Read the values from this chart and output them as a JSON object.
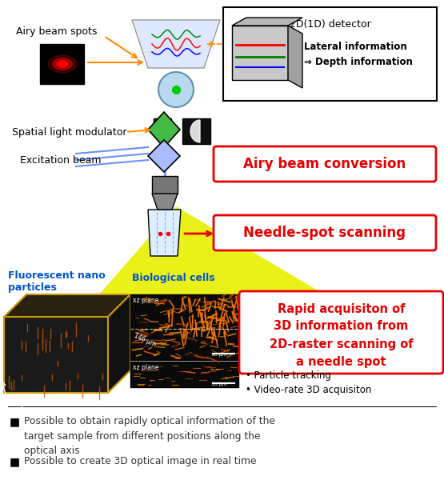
{
  "bg_color": "#ffffff",
  "airy_beam_label": "Airy beam spots",
  "slm_label": "Spatial light modulator",
  "excitation_label": "Excitation beam",
  "airy_conversion_label": "Airy beam conversion",
  "needle_scan_label": "Needle-spot scanning",
  "fluor_label1": "Fluorescent nano",
  "fluor_label2": "particles",
  "bio_label": "Biological cells",
  "rapid_acq_lines": [
    "Rapid acquisiton of",
    "3D information from",
    "2D-raster scanning of",
    "a needle spot"
  ],
  "bullet1": "• Particle tracking",
  "bullet2": "• Video-rate 3D acquisiton",
  "det_label": "2D(1D) detector",
  "lateral_info": "Lateral information",
  "depth_info": "⇒ Depth information",
  "text1_bullet": "■",
  "text1_body": "Possible to obtain rapidly optical information of the\ntarget sample from different positions along the\noptical axis",
  "text2_bullet": "■",
  "text2_body": "Possible to create 3D optical image in real time",
  "yellow_color": "#e8f000",
  "red_color": "#e60000",
  "blue_color": "#0055cc",
  "orange_color": "#ff8c00",
  "text_color": "#333333"
}
